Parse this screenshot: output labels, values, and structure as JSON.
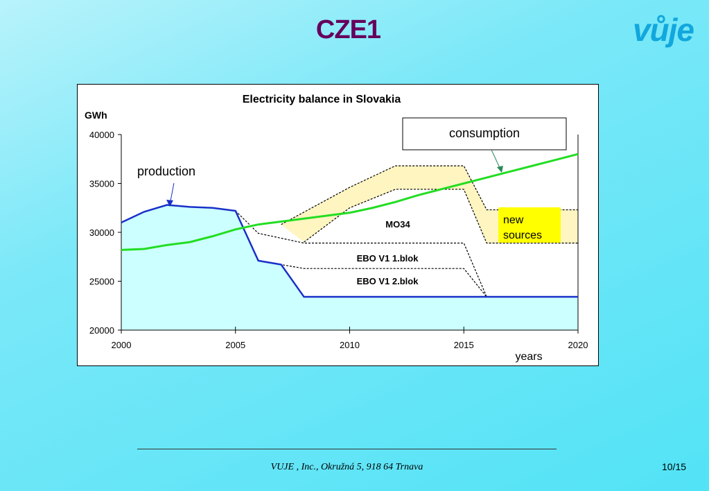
{
  "slide": {
    "title": "CZE1",
    "logo": "vůje",
    "footer": "VUJE , Inc., Okružná 5, 918 64 Trnava",
    "page": "10/15",
    "colors": {
      "title": "#66005c",
      "logo": "#12a7dd",
      "production": "#1830c8",
      "production_fill": "#ccffff",
      "consumption": "#22dd22",
      "new_sources_band": "#fff5c0",
      "new_sources_box": "#ffff00"
    }
  },
  "chart_data": {
    "type": "line",
    "title": "Electricity balance in Slovakia",
    "ylabel": "GWh",
    "xlabel": "years",
    "xlim": [
      2000,
      2020
    ],
    "ylim": [
      20000,
      40000
    ],
    "xticks": [
      2000,
      2005,
      2010,
      2015,
      2020
    ],
    "yticks": [
      20000,
      25000,
      30000,
      35000,
      40000
    ],
    "ytick_labels": [
      "20000",
      "25000",
      "30000",
      "35000",
      "40000"
    ],
    "grid": false,
    "series": [
      {
        "name": "production",
        "x": [
          2000,
          2001,
          2002,
          2003,
          2004,
          2005,
          2006,
          2007,
          2008,
          2009,
          2010,
          2011,
          2012,
          2013,
          2014,
          2015,
          2016,
          2017,
          2018,
          2019,
          2020
        ],
        "y": [
          31000,
          32100,
          32800,
          32600,
          32500,
          32200,
          27100,
          26700,
          23400,
          23400,
          23400,
          23400,
          23400,
          23400,
          23400,
          23400,
          23400,
          23400,
          23400,
          23400,
          23400
        ]
      },
      {
        "name": "consumption",
        "x": [
          2000,
          2001,
          2002,
          2003,
          2004,
          2005,
          2006,
          2007,
          2008,
          2009,
          2010,
          2011,
          2012,
          2013,
          2014,
          2015,
          2016,
          2017,
          2018,
          2019,
          2020
        ],
        "y": [
          28200,
          28300,
          28700,
          29000,
          29600,
          30300,
          30800,
          31100,
          31400,
          31700,
          32000,
          32500,
          33100,
          33800,
          34400,
          35000,
          35600,
          36200,
          36800,
          37400,
          38000
        ]
      }
    ],
    "dashed_boundaries": [
      {
        "name": "EBO V1 2.blok",
        "x": [
          2005,
          2006,
          2007,
          2008,
          2015,
          2016
        ],
        "y": [
          32200,
          27100,
          26700,
          26300,
          26300,
          23400
        ]
      },
      {
        "name": "EBO V1 1.blok",
        "x": [
          2005,
          2006,
          2008,
          2015,
          2016
        ],
        "y": [
          32200,
          29900,
          28900,
          28900,
          23400
        ]
      },
      {
        "name": "MO34 upper",
        "x": [
          2008,
          2010,
          2012,
          2015,
          2016,
          2020
        ],
        "y": [
          29000,
          32500,
          34400,
          34400,
          28900,
          28900
        ]
      },
      {
        "name": "band upper",
        "x": [
          2007,
          2010,
          2012,
          2015,
          2016,
          2020
        ],
        "y": [
          30800,
          34600,
          36800,
          36800,
          32300,
          32300
        ]
      }
    ],
    "annotations": {
      "production": "production",
      "consumption": "consumption",
      "new_sources": "new sources",
      "mo34": "MO34",
      "ebo1": "EBO V1  1.blok",
      "ebo2": "EBO V1  2.blok"
    }
  }
}
